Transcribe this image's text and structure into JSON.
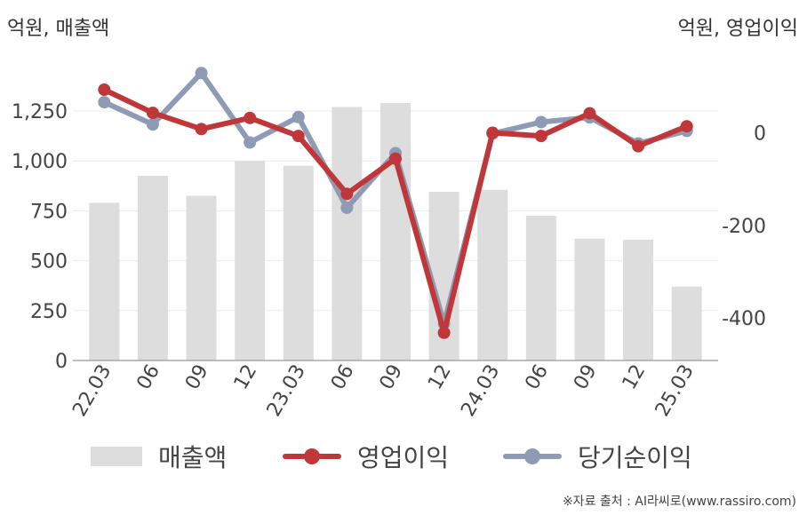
{
  "units": {
    "left": "억원, 매출액",
    "right": "억원, 영업이익"
  },
  "legend": {
    "revenue": "매출액",
    "operating": "영업이익",
    "net": "당기순이익"
  },
  "source": "※자료 출처 : AI라씨로(www.rassiro.com)",
  "colors": {
    "revenue": "#dddddd",
    "operating": "#c0373a",
    "net": "#8f9bb4",
    "grid": "#ebebeb",
    "axis": "#999999",
    "text": "#444444"
  },
  "chart_data": {
    "type": "bar+line",
    "categories": [
      "22.03",
      "06",
      "09",
      "12",
      "23.03",
      "06",
      "09",
      "12",
      "24.03",
      "06",
      "09",
      "12",
      "25.03"
    ],
    "left_axis": {
      "ticks": [
        "0",
        "250",
        "500",
        "750",
        "1,000",
        "1,250"
      ],
      "range": [
        0,
        1400
      ]
    },
    "right_axis": {
      "ticks": [
        "0",
        "-200",
        "-400"
      ],
      "range": [
        -500,
        90
      ]
    },
    "series": [
      {
        "name": "매출액",
        "type": "bar",
        "axis": "left",
        "values": [
          790,
          925,
          825,
          1000,
          975,
          1270,
          1290,
          845,
          855,
          725,
          610,
          605,
          370
        ]
      },
      {
        "name": "영업이익",
        "type": "line",
        "axis": "right",
        "values": [
          93,
          43,
          8,
          32,
          -7,
          -132,
          -56,
          -432,
          0,
          -7,
          42,
          -29,
          14
        ]
      },
      {
        "name": "당기순이익",
        "type": "line",
        "axis": "right",
        "values": [
          66,
          18,
          129,
          -21,
          34,
          -162,
          -44,
          -412,
          -2,
          23,
          33,
          -23,
          4
        ]
      }
    ]
  }
}
